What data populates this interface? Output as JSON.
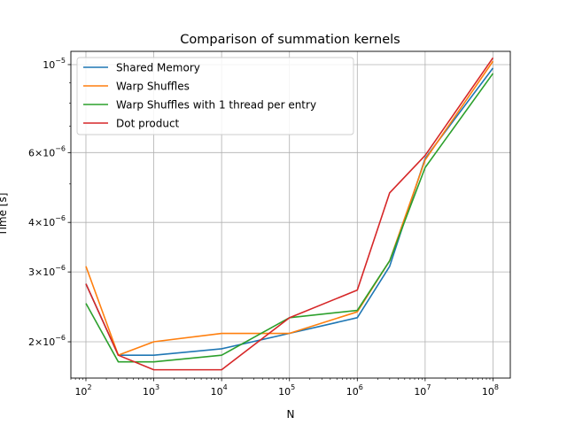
{
  "chart_data": {
    "type": "line",
    "title": "Comparison of summation kernels",
    "xlabel": "N",
    "ylabel": "Time [s]",
    "xscale": "log",
    "yscale": "log",
    "xlim": [
      60,
      180000000
    ],
    "ylim": [
      1.62e-06,
      1.08e-05
    ],
    "grid": true,
    "legend_position": "top-left",
    "x_ticks": [
      {
        "value": 100,
        "base": "10",
        "exp": "2"
      },
      {
        "value": 1000,
        "base": "10",
        "exp": "3"
      },
      {
        "value": 10000,
        "base": "10",
        "exp": "4"
      },
      {
        "value": 100000,
        "base": "10",
        "exp": "5"
      },
      {
        "value": 1000000,
        "base": "10",
        "exp": "6"
      },
      {
        "value": 10000000,
        "base": "10",
        "exp": "7"
      },
      {
        "value": 100000000,
        "base": "10",
        "exp": "8"
      }
    ],
    "y_ticks": [
      {
        "value": 2e-06,
        "mantissa": "2",
        "times": "×",
        "base": "10",
        "exp": "−6"
      },
      {
        "value": 3e-06,
        "mantissa": "3",
        "times": "×",
        "base": "10",
        "exp": "−6"
      },
      {
        "value": 4e-06,
        "mantissa": "4",
        "times": "×",
        "base": "10",
        "exp": "−6"
      },
      {
        "value": 6e-06,
        "mantissa": "6",
        "times": "×",
        "base": "10",
        "exp": "−6"
      },
      {
        "value": 1e-05,
        "mantissa": "",
        "times": "",
        "base": "10",
        "exp": "−5"
      }
    ],
    "series": [
      {
        "name": "Shared Memory",
        "color": "#1f77b4",
        "x": [
          100,
          300,
          1000,
          10000,
          100000,
          1000000,
          3000000,
          10000000,
          100000000
        ],
        "y": [
          2.8e-06,
          1.85e-06,
          1.85e-06,
          1.92e-06,
          2.1e-06,
          2.3e-06,
          3.1e-06,
          5.8e-06,
          9.8e-06
        ]
      },
      {
        "name": "Warp Shuffles",
        "color": "#ff7f0e",
        "x": [
          100,
          300,
          1000,
          10000,
          100000,
          1000000,
          3000000,
          10000000,
          100000000
        ],
        "y": [
          3.1e-06,
          1.85e-06,
          2e-06,
          2.1e-06,
          2.1e-06,
          2.38e-06,
          3.2e-06,
          5.75e-06,
          1.02e-05
        ]
      },
      {
        "name": "Warp Shuffles with 1 thread per entry",
        "color": "#2ca02c",
        "x": [
          100,
          300,
          1000,
          10000,
          100000,
          1000000,
          3000000,
          10000000,
          100000000
        ],
        "y": [
          2.5e-06,
          1.78e-06,
          1.78e-06,
          1.85e-06,
          2.3e-06,
          2.4e-06,
          3.2e-06,
          5.5e-06,
          9.5e-06
        ]
      },
      {
        "name": "Dot product",
        "color": "#d62728",
        "x": [
          100,
          300,
          1000,
          10000,
          100000,
          1000000,
          3000000,
          10000000,
          100000000
        ],
        "y": [
          2.8e-06,
          1.85e-06,
          1.7e-06,
          1.7e-06,
          2.3e-06,
          2.7e-06,
          4.75e-06,
          5.9e-06,
          1.04e-05
        ]
      }
    ]
  }
}
